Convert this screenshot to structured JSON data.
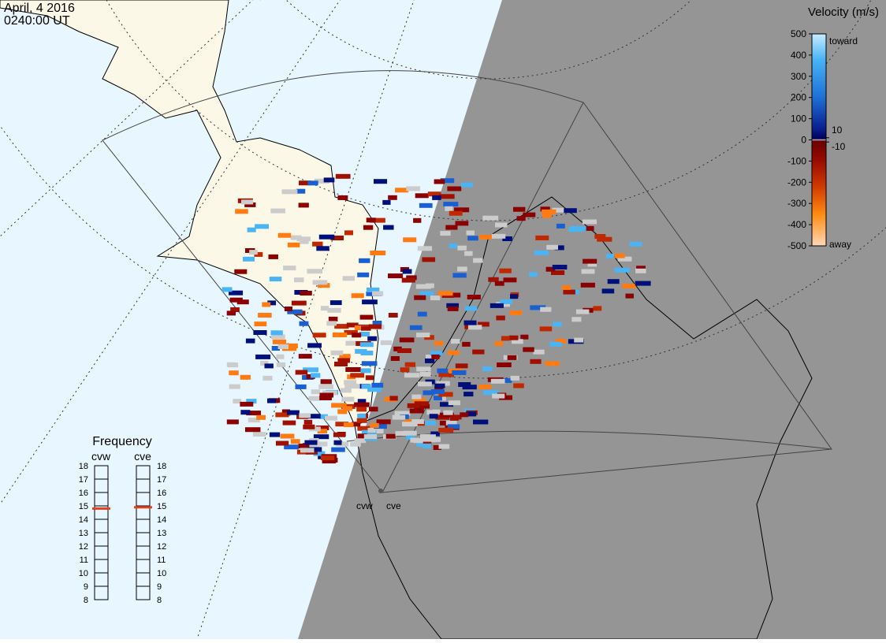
{
  "header": {
    "date": "April, 4 2016",
    "time": "0240:00 UT"
  },
  "colorbar": {
    "title": "Velocity (m/s)",
    "range": [
      -500,
      500
    ],
    "ticks": [
      500,
      400,
      300,
      200,
      100,
      0,
      -100,
      -200,
      -300,
      -400,
      -500
    ],
    "inner_ticks": [
      10,
      -10
    ],
    "top_label": "toward",
    "bottom_label": "away"
  },
  "frequency": {
    "title": "Frequency",
    "range": [
      8,
      18
    ],
    "ticks": [
      18,
      17,
      16,
      15,
      14,
      13,
      12,
      11,
      10,
      9,
      8
    ],
    "radars": [
      {
        "name": "cvw",
        "value": 14.8
      },
      {
        "name": "cve",
        "value": 14.9
      }
    ]
  },
  "stations": [
    "cvw",
    "cve"
  ]
}
